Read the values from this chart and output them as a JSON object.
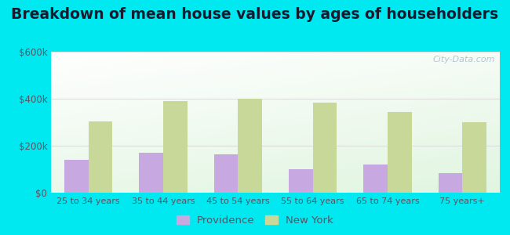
{
  "title": "Breakdown of mean house values by ages of householders",
  "categories": [
    "25 to 34 years",
    "35 to 44 years",
    "45 to 54 years",
    "55 to 64 years",
    "65 to 74 years",
    "75 years+"
  ],
  "providence_values": [
    140000,
    170000,
    165000,
    100000,
    120000,
    85000
  ],
  "newyork_values": [
    305000,
    390000,
    400000,
    385000,
    345000,
    300000
  ],
  "providence_color": "#c8a8e0",
  "newyork_color": "#c8d898",
  "ylim": [
    0,
    600000
  ],
  "yticks": [
    0,
    200000,
    400000,
    600000
  ],
  "ytick_labels": [
    "$0",
    "$200k",
    "$400k",
    "$600k"
  ],
  "plot_bg_color": "#eaf5e8",
  "outer_bg": "#00e8f0",
  "legend_labels": [
    "Providence",
    "New York"
  ],
  "watermark": "City-Data.com",
  "bar_width": 0.32,
  "title_fontsize": 13.5,
  "title_color": "#1a1a2e",
  "tick_color": "#555566",
  "grid_color": "#dddddd"
}
